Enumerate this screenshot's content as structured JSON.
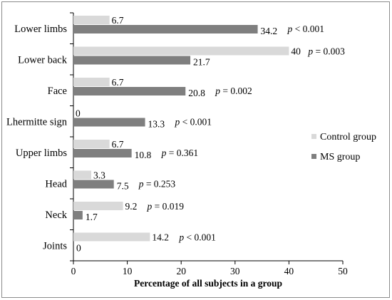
{
  "chart_data": {
    "type": "bar",
    "orientation": "horizontal",
    "categories": [
      "Lower limbs",
      "Lower back",
      "Face",
      "Lhermitte sign",
      "Upper limbs",
      "Head",
      "Neck",
      "Joints"
    ],
    "series": [
      {
        "name": "Control group",
        "color": "#d9d9d9",
        "values": [
          6.7,
          40,
          6.7,
          0,
          6.7,
          3.3,
          9.2,
          14.2
        ]
      },
      {
        "name": "MS group",
        "color": "#7f7f7f",
        "values": [
          34.2,
          21.7,
          20.8,
          13.3,
          10.8,
          7.5,
          1.7,
          0
        ]
      }
    ],
    "value_labels": {
      "Control group": [
        "6.7",
        "40",
        "6.7",
        "0",
        "6.7",
        "3.3",
        "9.2",
        "14.2"
      ],
      "MS group": [
        "34.2",
        "21.7",
        "20.8",
        "13.3",
        "10.8",
        "7.5",
        "1.7",
        "0"
      ]
    },
    "p_values": [
      {
        "op": " < 0.001"
      },
      {
        "op": " = 0.003"
      },
      {
        "op": " = 0.002"
      },
      {
        "op": " < 0.001"
      },
      {
        "op": " = 0.361"
      },
      {
        "op": " = 0.253"
      },
      {
        "op": " = 0.019"
      },
      {
        "op": " < 0.001"
      }
    ],
    "p_symbol": "p",
    "xlabel": "Percentage of all subjects in a group",
    "ylabel": "",
    "xlim": [
      0,
      50
    ],
    "xticks": [
      0,
      10,
      20,
      30,
      40,
      50
    ],
    "grid": false,
    "legend_position": "right"
  }
}
